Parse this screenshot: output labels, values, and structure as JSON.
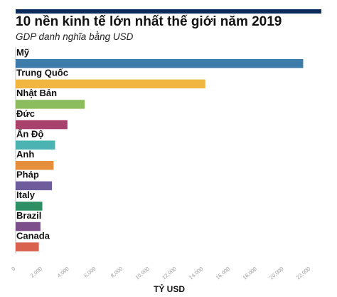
{
  "title": "10 nền kinh tế lớn nhất thế giới năm 2019",
  "subtitle": "GDP danh nghĩa bằng USD",
  "colors": {
    "top_bar": "#0d2a5c"
  },
  "chart_data": {
    "type": "bar",
    "orientation": "horizontal",
    "categories": [
      "Mỹ",
      "Trung Quốc",
      "Nhật Bản",
      "Đức",
      "Ấn Độ",
      "Anh",
      "Pháp",
      "Italy",
      "Brazil",
      "Canada"
    ],
    "values": [
      21440,
      14140,
      5150,
      3860,
      2940,
      2830,
      2710,
      1990,
      1850,
      1730
    ],
    "colors": [
      "#3d7bab",
      "#f0b63f",
      "#8bbd5e",
      "#a8426d",
      "#4bb3b2",
      "#e58f3d",
      "#6e5c9d",
      "#2e8f65",
      "#7c4f8a",
      "#d9614f"
    ],
    "xlabel": "TỶ USD",
    "xlim": [
      0,
      22000
    ],
    "xticks": [
      "0",
      "2,000",
      "4,000",
      "6,000",
      "8,000",
      "10,000",
      "12,000",
      "14,000",
      "16,000",
      "18,000",
      "20,000",
      "22,000"
    ],
    "tick_values": [
      0,
      2000,
      4000,
      6000,
      8000,
      10000,
      12000,
      14000,
      16000,
      18000,
      20000,
      22000
    ],
    "grid": false,
    "legend": "none"
  }
}
